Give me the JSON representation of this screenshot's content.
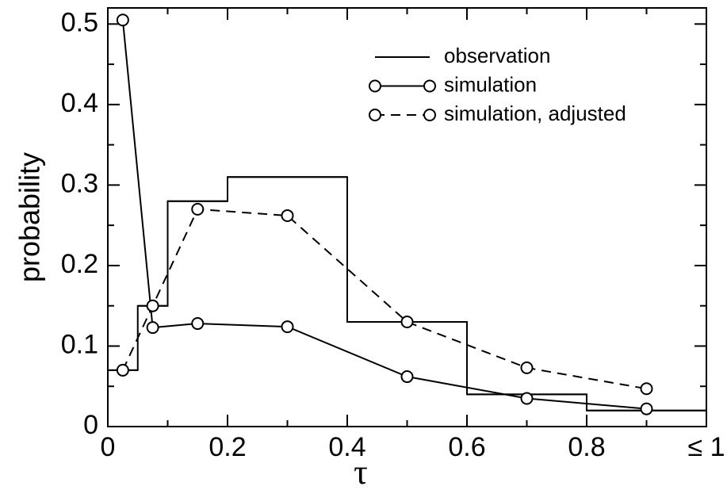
{
  "chart_data": {
    "type": "line",
    "xlabel": "τ",
    "ylabel": "probability",
    "xlim": [
      0,
      1
    ],
    "ylim": [
      0,
      0.52
    ],
    "xticks": [
      0,
      0.2,
      0.4,
      0.6,
      0.8,
      {
        "value": 1,
        "label": "≤ 1"
      }
    ],
    "yticks": [
      0,
      0.1,
      0.2,
      0.3,
      0.4,
      0.5
    ],
    "xminorticks": [
      0.1,
      0.3,
      0.5,
      0.7,
      0.9
    ],
    "yminorticks": [
      0.05,
      0.15,
      0.25,
      0.35,
      0.45
    ],
    "legend": "upper right",
    "series": [
      {
        "name": "observation",
        "color": "#000000",
        "style": "step",
        "bins": [
          0,
          0.05,
          0.1,
          0.2,
          0.4,
          0.6,
          0.8,
          1
        ],
        "values": [
          0.07,
          0.15,
          0.28,
          0.31,
          0.13,
          0.04,
          0.02
        ]
      },
      {
        "name": "simulation",
        "color": "#000000",
        "style": "solid",
        "marker": "circle",
        "x": [
          0.025,
          0.075,
          0.15,
          0.3,
          0.5,
          0.7,
          0.9
        ],
        "values": [
          0.505,
          0.123,
          0.128,
          0.124,
          0.062,
          0.035,
          0.022
        ]
      },
      {
        "name": "simulation, adjusted",
        "color": "#000000",
        "style": "dashed",
        "marker": "circle",
        "x": [
          0.025,
          0.075,
          0.15,
          0.3,
          0.5,
          0.7,
          0.9
        ],
        "values": [
          0.07,
          0.15,
          0.27,
          0.262,
          0.13,
          0.073,
          0.047
        ]
      }
    ]
  }
}
